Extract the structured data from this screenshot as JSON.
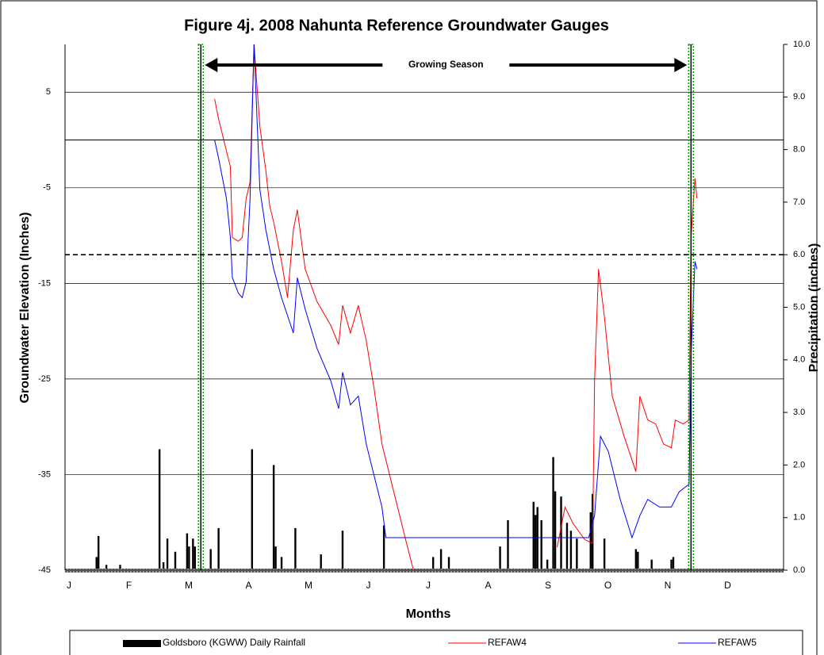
{
  "chart_data": {
    "type": "line",
    "title": "Figure 4j.  2008 Nahunta Reference Groundwater Gauges",
    "x_label": "Months",
    "y_label": "Groundwater Elevation (Inches)",
    "y2_label": "Precipitation (inches)",
    "categories": [
      "J",
      "F",
      "M",
      "A",
      "M",
      "J",
      "J",
      "A",
      "S",
      "O",
      "N",
      "D"
    ],
    "xlim": [
      1,
      366
    ],
    "ylim": [
      -45,
      10
    ],
    "yticks": [
      -45,
      -35,
      -25,
      -15,
      -5,
      5
    ],
    "y2lim": [
      0,
      10
    ],
    "y2ticks": [
      {
        "value": 0,
        "label": "0.0"
      },
      {
        "value": 1,
        "label": "1.0"
      },
      {
        "value": 2,
        "label": "2.0"
      },
      {
        "value": 3,
        "label": "3.0"
      },
      {
        "value": 4,
        "label": "4.0"
      },
      {
        "value": 5,
        "label": "5.0"
      },
      {
        "value": 6,
        "label": "6.0"
      },
      {
        "value": 7,
        "label": "7.0"
      },
      {
        "value": 8,
        "label": "8.0"
      },
      {
        "value": 9,
        "label": "9.0"
      },
      {
        "value": 10,
        "label": "10.0"
      }
    ],
    "grid": true,
    "reference_lines": [
      {
        "value": 0,
        "color": "#000000",
        "style": "solid"
      },
      {
        "value": -12,
        "color": "#000000",
        "style": "dashed"
      }
    ],
    "growing_season": {
      "label": "Growing Season",
      "start": 70,
      "end": 319,
      "color": "#00a000"
    },
    "series": [
      {
        "name": "Goldsboro (KGWW) Daily Rainfall",
        "type": "bar",
        "axis": "y2",
        "color": "#000000",
        "x": [
          17,
          18,
          22,
          29,
          49,
          51,
          53,
          57,
          63,
          64,
          66,
          67,
          75,
          79,
          96,
          107,
          108,
          111,
          118,
          131,
          142,
          163,
          188,
          192,
          196,
          222,
          226,
          239,
          240,
          241,
          243,
          246,
          249,
          250,
          253,
          256,
          258,
          261,
          268,
          269,
          275,
          291,
          292,
          299,
          309,
          310
        ],
        "values": [
          0.25,
          0.65,
          0.1,
          0.1,
          2.3,
          0.15,
          0.6,
          0.35,
          0.7,
          0.45,
          0.6,
          0.45,
          0.4,
          0.8,
          2.3,
          2.0,
          0.45,
          0.25,
          0.8,
          0.3,
          0.75,
          0.85,
          0.25,
          0.4,
          0.25,
          0.45,
          0.95,
          1.3,
          1.05,
          1.2,
          0.95,
          0.2,
          2.15,
          1.5,
          1.4,
          0.9,
          0.75,
          0.6,
          1.1,
          1.45,
          0.6,
          0.4,
          0.35,
          0.2,
          0.2,
          0.25
        ]
      },
      {
        "name": "REFAW4",
        "color": "#ff0000",
        "x": [
          77,
          79,
          85,
          86,
          89,
          91,
          93,
          95,
          97,
          100,
          103,
          105,
          107,
          111,
          114,
          117,
          119,
          123,
          129,
          136,
          140,
          142,
          146,
          150,
          154,
          158,
          162,
          168,
          174,
          178,
          180,
          251,
          255,
          259,
          265,
          269,
          270,
          272,
          275,
          279,
          285,
          291,
          293,
          297,
          301,
          305,
          309,
          311,
          315,
          318,
          319,
          321,
          322
        ],
        "values": [
          4.3,
          2.2,
          -2.8,
          -10.2,
          -10.6,
          -10.2,
          -6.1,
          -4.4,
          10,
          1.4,
          -3.2,
          -6.9,
          -8.6,
          -12.7,
          -16.5,
          -9.4,
          -7.3,
          -13.5,
          -16.9,
          -19.4,
          -21.4,
          -17.3,
          -20.2,
          -17.3,
          -21.0,
          -26.0,
          -31.8,
          -36.8,
          -41.8,
          -45,
          null,
          -42.6,
          -38.4,
          -40.1,
          -41.8,
          -42.2,
          -25.2,
          -13.5,
          -18.5,
          -26.8,
          -31.0,
          -34.7,
          -26.8,
          -29.3,
          -29.7,
          -31.8,
          -32.2,
          -29.3,
          -29.7,
          -29.3,
          -10.2,
          -4.0,
          -6.1
        ]
      },
      {
        "name": "REFAW5",
        "color": "#0000ff",
        "x": [
          77,
          79,
          83,
          85,
          86,
          89,
          91,
          93,
          95,
          97,
          100,
          103,
          107,
          111,
          117,
          119,
          123,
          129,
          136,
          140,
          142,
          146,
          150,
          154,
          158,
          162,
          164,
          267,
          270,
          273,
          277,
          283,
          289,
          293,
          297,
          303,
          309,
          313,
          318,
          319,
          321,
          322
        ],
        "values": [
          0,
          -1.9,
          -6.1,
          -10.2,
          -14.4,
          -16.0,
          -16.5,
          -14.8,
          -6.1,
          10,
          -5.2,
          -9.4,
          -13.5,
          -16.5,
          -20.2,
          -14.4,
          -17.7,
          -21.8,
          -25.2,
          -28.1,
          -24.3,
          -27.7,
          -26.8,
          -31.8,
          -35.1,
          -38.4,
          -41.6,
          -41.6,
          -39.3,
          -31.0,
          -32.6,
          -37.6,
          -41.6,
          -39.3,
          -37.6,
          -38.4,
          -38.4,
          -36.8,
          -36.0,
          -22.7,
          -12.7,
          -13.5
        ]
      }
    ]
  }
}
